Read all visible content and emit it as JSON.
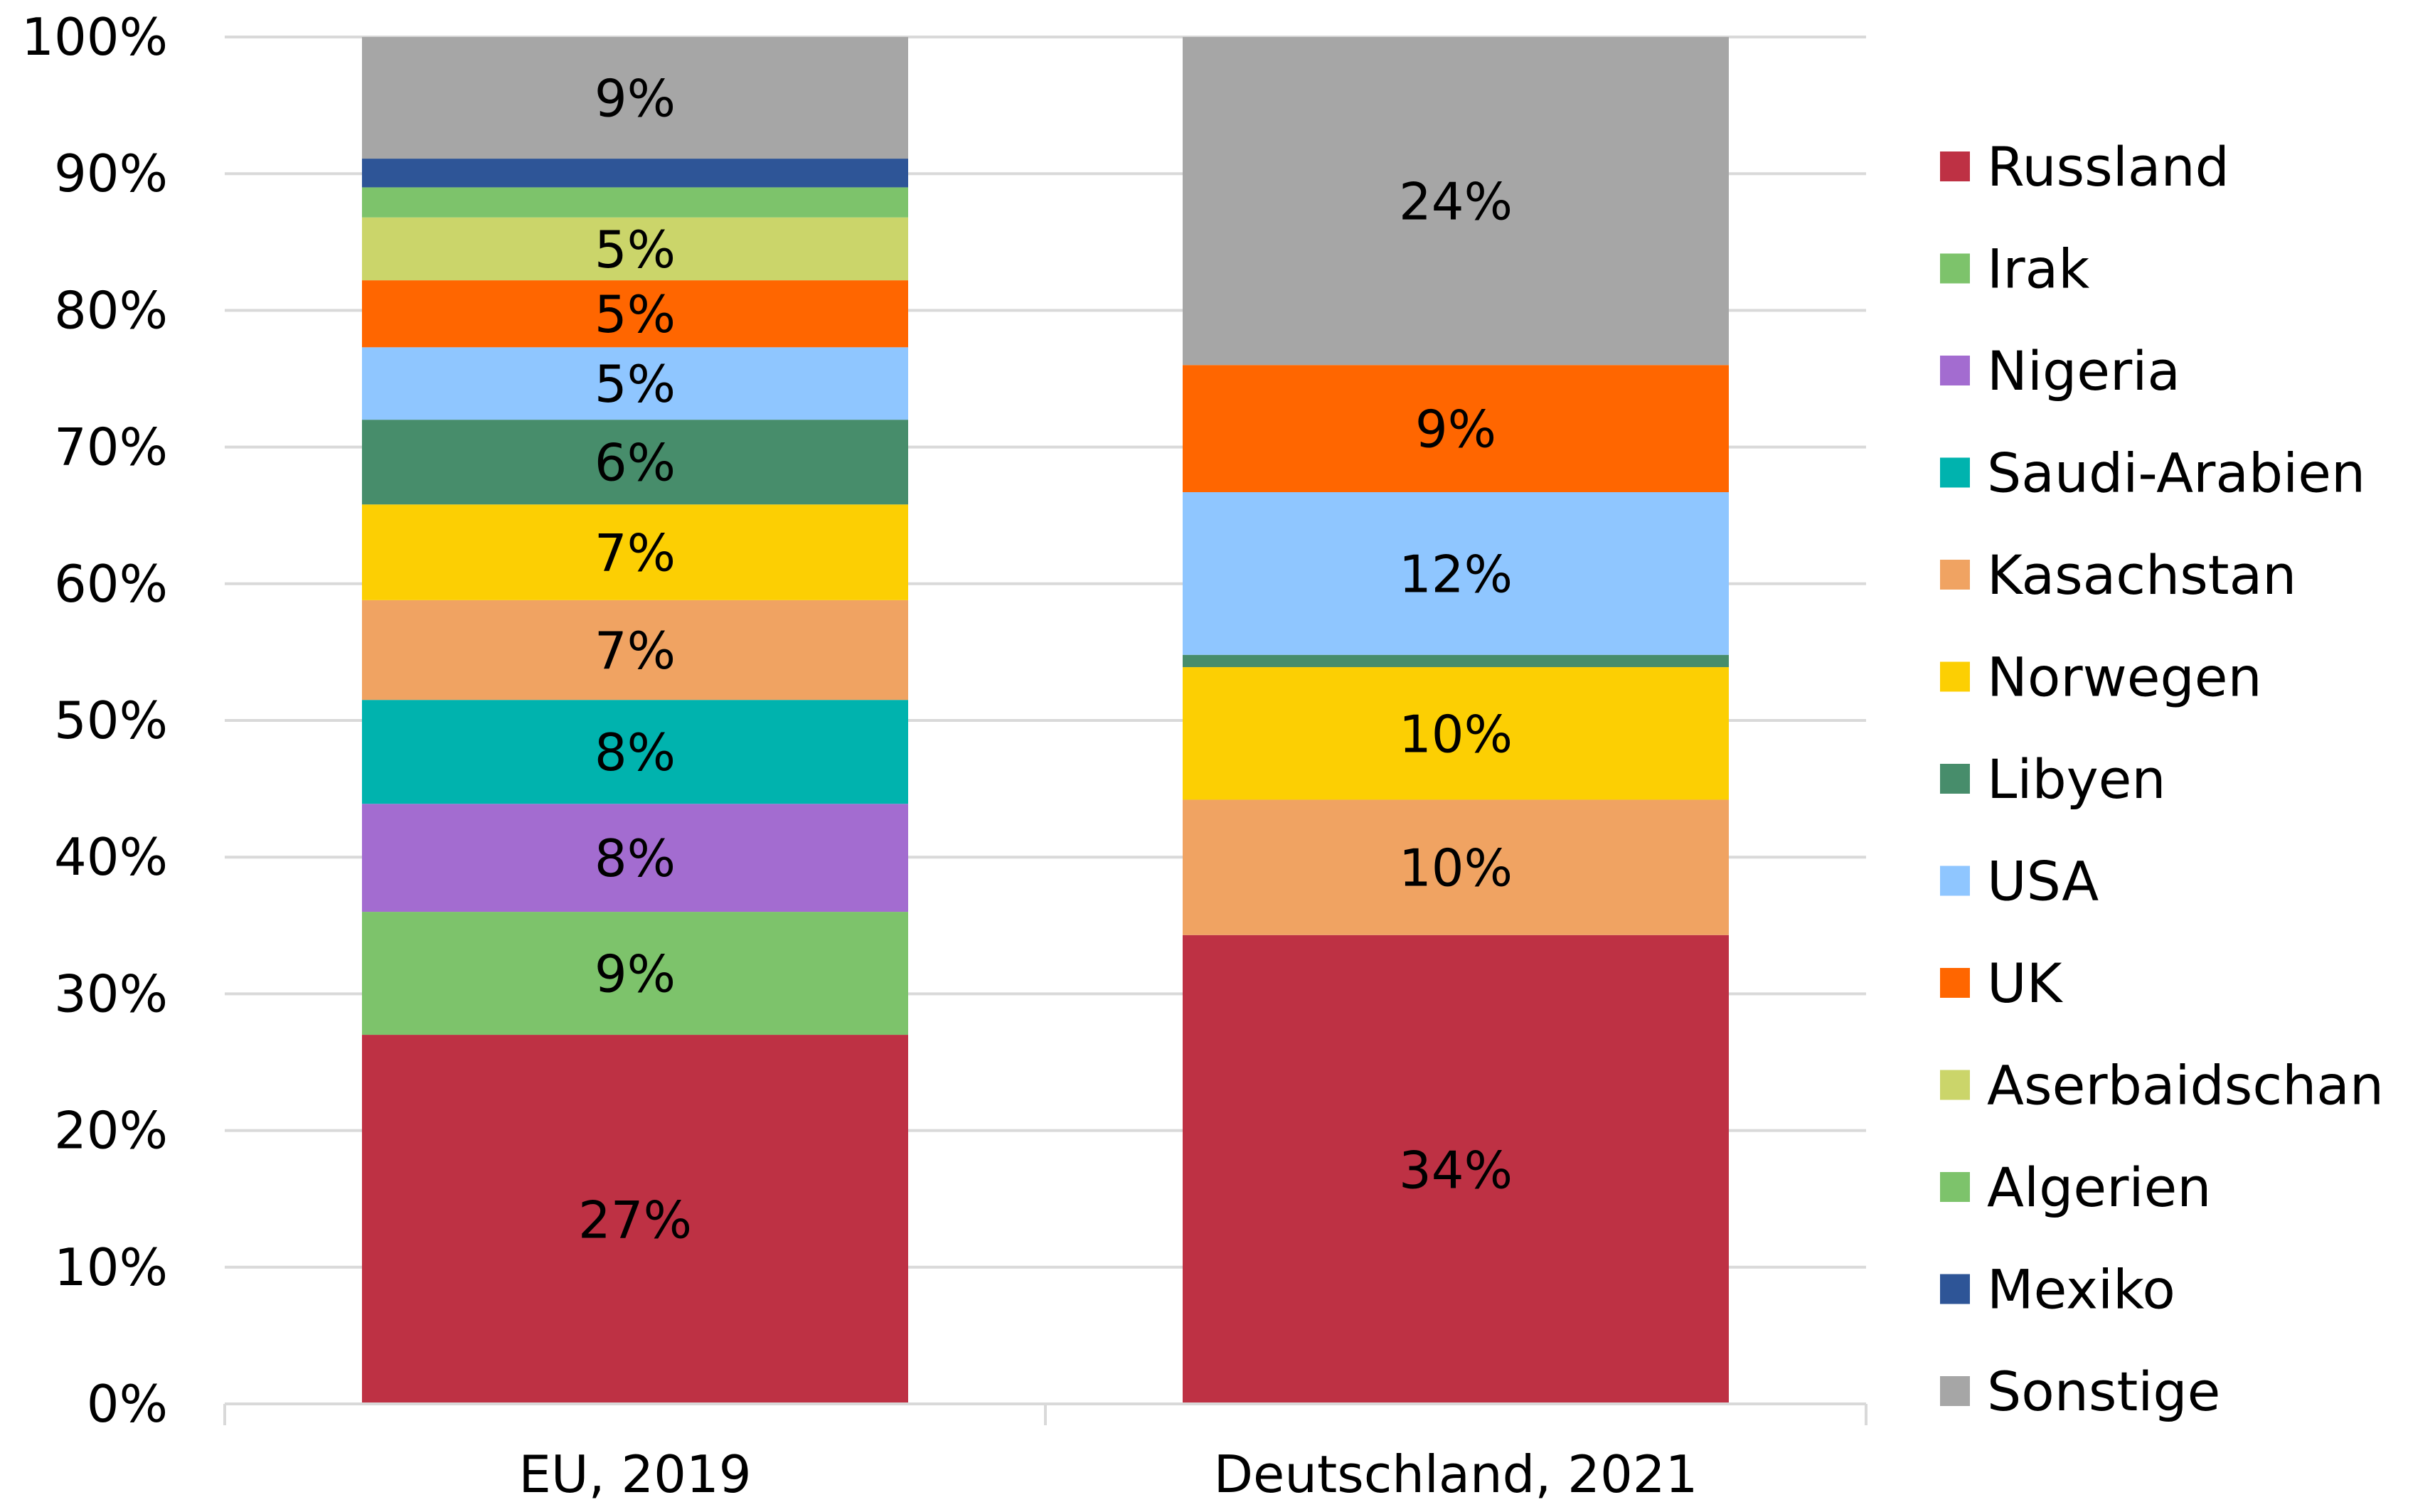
{
  "chart_data": {
    "type": "bar",
    "stacked": true,
    "categories": [
      "EU, 2019",
      "Deutschland, 2021"
    ],
    "ylim": [
      0,
      100
    ],
    "yticks": [
      "0%",
      "10%",
      "20%",
      "30%",
      "40%",
      "50%",
      "60%",
      "70%",
      "80%",
      "90%",
      "100%"
    ],
    "grid": true,
    "legend_position": "right",
    "series": [
      {
        "name": "Russland",
        "color": "#BE3144",
        "values": [
          27,
          34.3
        ],
        "labels": [
          "27%",
          "34%"
        ]
      },
      {
        "name": "Algerien",
        "color": "#7DC36B",
        "values": [
          9,
          0
        ],
        "labels": [
          "9%",
          ""
        ]
      },
      {
        "name": "Nigeria",
        "color": "#A36CD0",
        "values": [
          7.9,
          0
        ],
        "labels": [
          "8%",
          ""
        ]
      },
      {
        "name": "Saudi-Arabien",
        "color": "#00B3AE",
        "values": [
          7.6,
          0
        ],
        "labels": [
          "8%",
          ""
        ]
      },
      {
        "name": "Kasachstan",
        "color": "#F0A362",
        "values": [
          7.3,
          9.9
        ],
        "labels": [
          "7%",
          "10%"
        ]
      },
      {
        "name": "Norwegen",
        "color": "#FCCF03",
        "values": [
          7,
          9.7
        ],
        "labels": [
          "7%",
          "10%"
        ]
      },
      {
        "name": "Libyen",
        "color": "#478D6B",
        "values": [
          6.2,
          0.9
        ],
        "labels": [
          "6%",
          ""
        ]
      },
      {
        "name": "USA",
        "color": "#8FC6FF",
        "values": [
          5.3,
          11.9
        ],
        "labels": [
          "5%",
          "12%"
        ]
      },
      {
        "name": "UK",
        "color": "#FF6600",
        "values": [
          4.9,
          9.3
        ],
        "labels": [
          "5%",
          "9%"
        ]
      },
      {
        "name": "Aserbaidschan",
        "color": "#CBD56A",
        "values": [
          4.6,
          0
        ],
        "labels": [
          "5%",
          ""
        ]
      },
      {
        "name": "Irak",
        "color": "#7DC36B",
        "values": [
          2.2,
          0
        ],
        "labels": [
          "",
          ""
        ]
      },
      {
        "name": "Mexiko",
        "color": "#2E5597",
        "values": [
          2.1,
          0
        ],
        "labels": [
          "",
          ""
        ]
      },
      {
        "name": "Sonstige",
        "color": "#A6A6A6",
        "values": [
          8.9,
          24
        ],
        "labels": [
          "9%",
          "24%"
        ]
      }
    ],
    "legend_order": [
      "Russland",
      "Irak",
      "Nigeria",
      "Saudi-Arabien",
      "Kasachstan",
      "Norwegen",
      "Libyen",
      "USA",
      "UK",
      "Aserbaidschan",
      "Algerien",
      "Mexiko",
      "Sonstige"
    ]
  }
}
